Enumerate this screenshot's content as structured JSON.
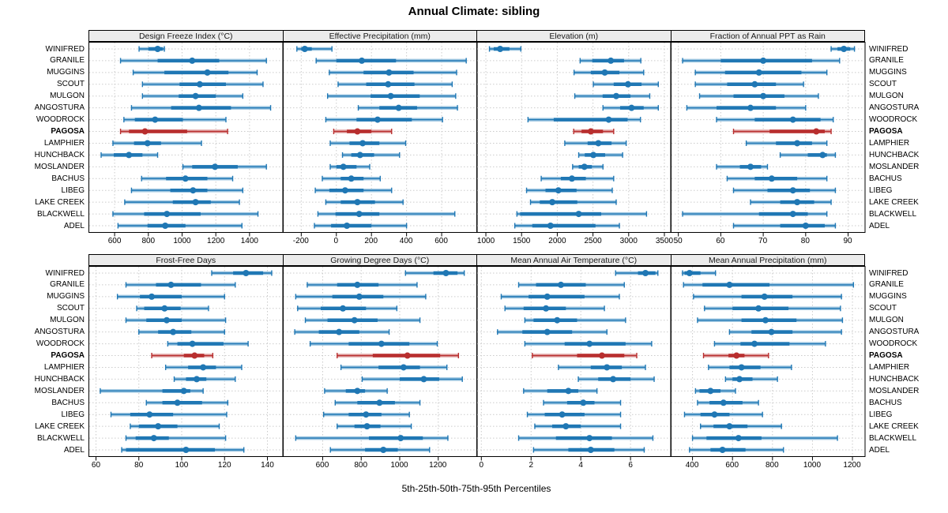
{
  "title": "Annual Climate: sibling",
  "caption": "5th-25th-50th-75th-95th Percentiles",
  "colors": {
    "normal": "#1f77b4",
    "normal_light": "#9cc5e0",
    "highlight": "#b82e2e",
    "highlight_light": "#e0a3a3",
    "gridline": "#cbcbcb",
    "panel_border": "#000000",
    "header_bg": "#ececec"
  },
  "chart_data": {
    "type": "scatter",
    "glyph": "percentile-interval (5th-25th-50th-75th-95th): thin line 5-95 with end caps, thick band 25-75, dot at median",
    "legend_position": "none",
    "grid": "dotted horizontal per site and vertical per tick",
    "sites": [
      "WINIFRED",
      "GRANILE",
      "MUGGINS",
      "SCOUT",
      "MULGON",
      "ANGOSTURA",
      "WOODROCK",
      "PAGOSA",
      "LAMPHIER",
      "HUNCHBACK",
      "MOSLANDER",
      "BACHUS",
      "LIBEG",
      "LAKE CREEK",
      "BLACKWELL",
      "ADEL"
    ],
    "highlight_site": "PAGOSA",
    "panels": [
      {
        "title": "Design Freeze Index (°C)",
        "grid_row": 0,
        "grid_col": 0,
        "xlim": [
          445,
          1595
        ],
        "ticks": [
          600,
          800,
          1000,
          1200,
          1400
        ],
        "values": [
          [
            745,
            800,
            855,
            885,
            895
          ],
          [
            635,
            855,
            1060,
            1220,
            1500
          ],
          [
            710,
            895,
            1150,
            1275,
            1445
          ],
          [
            765,
            985,
            1105,
            1260,
            1480
          ],
          [
            765,
            980,
            1080,
            1200,
            1360
          ],
          [
            700,
            935,
            1100,
            1290,
            1525
          ],
          [
            655,
            720,
            840,
            1005,
            1260
          ],
          [
            635,
            685,
            780,
            1030,
            1270
          ],
          [
            590,
            715,
            795,
            875,
            1115
          ],
          [
            520,
            595,
            685,
            765,
            855
          ],
          [
            1005,
            1060,
            1195,
            1330,
            1500
          ],
          [
            760,
            905,
            1020,
            1150,
            1300
          ],
          [
            700,
            930,
            1065,
            1150,
            1360
          ],
          [
            660,
            945,
            1080,
            1170,
            1340
          ],
          [
            590,
            775,
            910,
            1110,
            1450
          ],
          [
            620,
            795,
            900,
            1020,
            1355
          ]
        ]
      },
      {
        "title": "Effective Precipitation (mm)",
        "grid_row": 0,
        "grid_col": 1,
        "xlim": [
          -305,
          800
        ],
        "ticks": [
          -200,
          0,
          200,
          400,
          600
        ],
        "values": [
          [
            -225,
            -200,
            -180,
            -140,
            -25
          ],
          [
            -115,
            0,
            145,
            340,
            740
          ],
          [
            -40,
            155,
            300,
            440,
            685
          ],
          [
            10,
            170,
            295,
            445,
            660
          ],
          [
            -50,
            195,
            310,
            475,
            680
          ],
          [
            125,
            245,
            355,
            460,
            690
          ],
          [
            -60,
            115,
            235,
            430,
            605
          ],
          [
            -15,
            60,
            120,
            200,
            315
          ],
          [
            -35,
            75,
            150,
            245,
            395
          ],
          [
            35,
            85,
            135,
            215,
            360
          ],
          [
            -35,
            0,
            40,
            115,
            190
          ],
          [
            -80,
            25,
            85,
            155,
            250
          ],
          [
            -120,
            -40,
            50,
            155,
            315
          ],
          [
            -60,
            25,
            120,
            220,
            380
          ],
          [
            -105,
            -5,
            130,
            245,
            675
          ],
          [
            -125,
            -30,
            60,
            200,
            400
          ]
        ]
      },
      {
        "title": "Elevation (m)",
        "grid_row": 0,
        "grid_col": 2,
        "xlim": [
          867,
          3583
        ],
        "ticks": [
          1000,
          1500,
          2000,
          2500,
          3000,
          3500
        ],
        "values": [
          [
            1050,
            1110,
            1200,
            1330,
            1490
          ],
          [
            2320,
            2490,
            2750,
            2935,
            3170
          ],
          [
            2235,
            2470,
            2665,
            2870,
            3210
          ],
          [
            2505,
            2790,
            2990,
            3180,
            3415
          ],
          [
            2245,
            2635,
            2825,
            3025,
            3295
          ],
          [
            2640,
            2880,
            3040,
            3210,
            3415
          ],
          [
            1590,
            1950,
            2720,
            2985,
            3165
          ],
          [
            2230,
            2340,
            2470,
            2640,
            2790
          ],
          [
            2105,
            2425,
            2575,
            2760,
            2965
          ],
          [
            2300,
            2385,
            2505,
            2670,
            2915
          ],
          [
            2215,
            2300,
            2380,
            2485,
            2640
          ],
          [
            1775,
            2050,
            2205,
            2400,
            2790
          ],
          [
            1570,
            1835,
            2015,
            2270,
            2770
          ],
          [
            1625,
            1755,
            1930,
            2280,
            2825
          ],
          [
            1435,
            1480,
            2300,
            2615,
            3250
          ],
          [
            1405,
            1650,
            1905,
            2535,
            2870
          ]
        ]
      },
      {
        "title": "Fraction of Annual PPT as Rain",
        "grid_row": 0,
        "grid_col": 3,
        "xlim": [
          48.2,
          93.9
        ],
        "ticks": [
          50,
          60,
          70,
          80,
          90
        ],
        "values": [
          [
            86,
            87.5,
            89,
            90.5,
            91.5
          ],
          [
            51,
            60,
            70,
            81.5,
            88
          ],
          [
            54,
            61,
            69,
            79,
            85
          ],
          [
            54,
            61.5,
            68,
            73,
            79.5
          ],
          [
            55,
            63,
            70,
            75,
            83
          ],
          [
            52,
            59,
            67,
            73,
            80
          ],
          [
            59,
            68,
            77,
            83.5,
            86.5
          ],
          [
            63,
            71.5,
            82.5,
            84.5,
            86
          ],
          [
            66,
            73,
            78,
            81.5,
            85
          ],
          [
            74,
            80.5,
            84,
            85,
            87
          ],
          [
            59,
            64.5,
            67,
            69.5,
            71
          ],
          [
            61.5,
            68,
            72,
            78,
            85
          ],
          [
            63,
            71,
            77,
            81,
            87
          ],
          [
            67,
            74,
            78,
            82,
            86
          ],
          [
            51,
            69,
            77,
            80.5,
            85
          ],
          [
            63,
            74,
            80,
            84.5,
            87
          ]
        ]
      },
      {
        "title": "Frost-Free Days",
        "grid_row": 1,
        "grid_col": 0,
        "xlim": [
          56.5,
          147
        ],
        "ticks": [
          60,
          80,
          100,
          120,
          140
        ],
        "values": [
          [
            114,
            124,
            130,
            138,
            142
          ],
          [
            74,
            88,
            95,
            109,
            125
          ],
          [
            70,
            80.5,
            86,
            100,
            120
          ],
          [
            79,
            82.5,
            92,
            99.5,
            112.5
          ],
          [
            74,
            83.5,
            93,
            100,
            120.5
          ],
          [
            80,
            89,
            96,
            104.5,
            120
          ],
          [
            93.5,
            98,
            105,
            119.5,
            131
          ],
          [
            86,
            101,
            106,
            110.5,
            114.5
          ],
          [
            92.5,
            103,
            110,
            116,
            128
          ],
          [
            96.5,
            102,
            107,
            111.5,
            125
          ],
          [
            62,
            91,
            101,
            104,
            110
          ],
          [
            83.5,
            91,
            98,
            109.5,
            121.5
          ],
          [
            67,
            76,
            85,
            96,
            121
          ],
          [
            76,
            80,
            89,
            98,
            117.5
          ],
          [
            74,
            78.5,
            87,
            94,
            120.5
          ],
          [
            72,
            74,
            102,
            115.5,
            129
          ]
        ]
      },
      {
        "title": "Growing Degree Days (°C)",
        "grid_row": 1,
        "grid_col": 1,
        "xlim": [
          393,
          1400
        ],
        "ticks": [
          600,
          800,
          1000,
          1200
        ],
        "values": [
          [
            1030,
            1175,
            1240,
            1300,
            1335
          ],
          [
            520,
            675,
            780,
            890,
            1090
          ],
          [
            460,
            650,
            790,
            915,
            1135
          ],
          [
            470,
            590,
            705,
            825,
            985
          ],
          [
            510,
            625,
            765,
            885,
            1105
          ],
          [
            455,
            580,
            685,
            790,
            945
          ],
          [
            535,
            735,
            905,
            1050,
            1195
          ],
          [
            675,
            860,
            1040,
            1210,
            1305
          ],
          [
            695,
            890,
            1020,
            1105,
            1245
          ],
          [
            805,
            1000,
            1125,
            1205,
            1325
          ],
          [
            610,
            720,
            780,
            820,
            935
          ],
          [
            665,
            780,
            895,
            975,
            1105
          ],
          [
            605,
            735,
            825,
            905,
            1050
          ],
          [
            675,
            765,
            830,
            900,
            1060
          ],
          [
            460,
            840,
            1005,
            1120,
            1250
          ],
          [
            640,
            820,
            915,
            990,
            1155
          ]
        ]
      },
      {
        "title": "Mean Annual Air Temperature (°C)",
        "grid_row": 1,
        "grid_col": 2,
        "xlim": [
          -0.2,
          7.6
        ],
        "ticks": [
          0,
          2,
          4,
          6
        ],
        "values": [
          [
            5.4,
            6.3,
            6.6,
            7.0,
            7.1
          ],
          [
            1.5,
            2.2,
            3.2,
            4.2,
            5.75
          ],
          [
            0.8,
            1.9,
            2.65,
            4.15,
            5.55
          ],
          [
            0.95,
            1.7,
            2.6,
            3.4,
            4.95
          ],
          [
            1.75,
            2.1,
            3.05,
            3.85,
            5.8
          ],
          [
            0.65,
            1.65,
            2.65,
            3.65,
            5.05
          ],
          [
            1.75,
            3.35,
            4.35,
            5.8,
            6.85
          ],
          [
            2.05,
            3.85,
            4.85,
            5.75,
            6.25
          ],
          [
            3.1,
            4.4,
            5.05,
            5.65,
            6.6
          ],
          [
            3.9,
            4.7,
            5.3,
            6.0,
            6.95
          ],
          [
            1.7,
            2.65,
            3.5,
            3.9,
            4.65
          ],
          [
            2.5,
            3.45,
            4.1,
            4.55,
            5.6
          ],
          [
            1.85,
            2.55,
            3.25,
            4.15,
            5.6
          ],
          [
            2.15,
            2.85,
            3.4,
            4.0,
            5.6
          ],
          [
            1.5,
            3.0,
            4.35,
            5.25,
            6.9
          ],
          [
            2.1,
            3.5,
            4.4,
            5.35,
            6.55
          ]
        ]
      },
      {
        "title": "Mean Annual Precipitation (mm)",
        "grid_row": 1,
        "grid_col": 3,
        "xlim": [
          291,
          1261
        ],
        "ticks": [
          400,
          600,
          800,
          1000,
          1200
        ],
        "values": [
          [
            350,
            360,
            385,
            440,
            515
          ],
          [
            355,
            450,
            585,
            785,
            1205
          ],
          [
            405,
            645,
            760,
            900,
            1145
          ],
          [
            460,
            600,
            730,
            880,
            1140
          ],
          [
            425,
            645,
            765,
            920,
            1150
          ],
          [
            585,
            695,
            795,
            900,
            1145
          ],
          [
            510,
            640,
            710,
            885,
            1065
          ],
          [
            455,
            580,
            620,
            660,
            780
          ],
          [
            480,
            585,
            645,
            740,
            895
          ],
          [
            565,
            600,
            635,
            700,
            825
          ],
          [
            415,
            435,
            490,
            540,
            615
          ],
          [
            425,
            485,
            555,
            650,
            730
          ],
          [
            360,
            440,
            510,
            585,
            750
          ],
          [
            440,
            505,
            585,
            675,
            845
          ],
          [
            400,
            470,
            630,
            745,
            1125
          ],
          [
            385,
            490,
            550,
            665,
            855
          ]
        ]
      }
    ]
  }
}
